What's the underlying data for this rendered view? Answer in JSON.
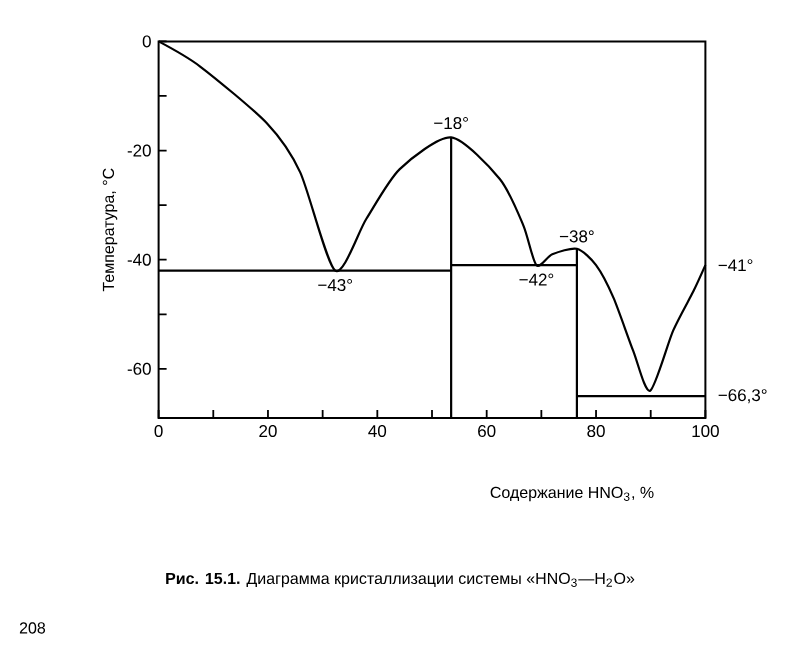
{
  "chart_data": {
    "type": "line",
    "xlabel": "Содержание HNO$_{3}$, %",
    "ylabel": "Температура, °C",
    "xlim": [
      0,
      100
    ],
    "ylim": [
      -69,
      0
    ],
    "xticks": [
      0,
      {
        "value": 10,
        "label": null
      },
      20,
      {
        "value": 30,
        "label": null
      },
      40,
      {
        "value": 50,
        "label": null
      },
      60,
      {
        "value": 70,
        "label": null
      },
      80,
      {
        "value": 90,
        "label": null
      },
      100
    ],
    "yticks": [
      {
        "value": -60,
        "label": "-60"
      },
      {
        "value": -50,
        "label": null
      },
      {
        "value": -40,
        "label": "-40"
      },
      {
        "value": -30,
        "label": null
      },
      {
        "value": -20,
        "label": "-20"
      },
      {
        "value": -10,
        "label": null
      },
      0
    ],
    "grid": false,
    "marker": "none",
    "line_style": "solid",
    "series": [
      {
        "color": "#000000",
        "x": [
          0,
          7.6,
          19.8,
          25.9,
          32.3,
          38,
          44.1,
          53.5,
          62.4,
          66.7,
          69.1,
          72,
          76.5,
          80,
          83.2,
          86.8,
          89.9,
          94.1,
          97.8,
          100
        ],
        "values": [
          0,
          -4.6,
          -15,
          -24,
          -42,
          -32.5,
          -23.4,
          -17.6,
          -25.2,
          -33.7,
          -41,
          -39,
          -38,
          -41,
          -47,
          -56.7,
          -64,
          -53,
          -45.8,
          -41
        ]
      },
      {
        "color": "#000000",
        "x": [
          0,
          53.5
        ],
        "values": [
          -42,
          -42
        ]
      },
      {
        "color": "#000000",
        "x": [
          53.5,
          53.5
        ],
        "values": [
          -17.6,
          -69
        ]
      },
      {
        "color": "#000000",
        "x": [
          53.5,
          76.5
        ],
        "values": [
          -41,
          -41
        ]
      },
      {
        "color": "#000000",
        "x": [
          76.5,
          76.5
        ],
        "values": [
          -38,
          -69
        ]
      },
      {
        "color": "#000000",
        "x": [
          76.5,
          100
        ],
        "values": [
          -65,
          -65
        ]
      }
    ],
    "annotations": [
      {
        "text": "−43°",
        "x": 32.3,
        "y": -42
      },
      {
        "text": "−18°",
        "x": 53.5,
        "y": -17.6
      },
      {
        "text": "−42°",
        "x": 69.1,
        "y": -41
      },
      {
        "text": "−38°",
        "x": 76.5,
        "y": -38
      },
      {
        "text": "−41°",
        "x": 100,
        "y": -41
      },
      {
        "text": "−66,3°",
        "x": 100,
        "y": -65
      },
      "**Рис. 15.1.** Диаграмма кристаллизации системы «HNO$_{3}$—H$_{2}$O»",
      "208"
    ]
  }
}
